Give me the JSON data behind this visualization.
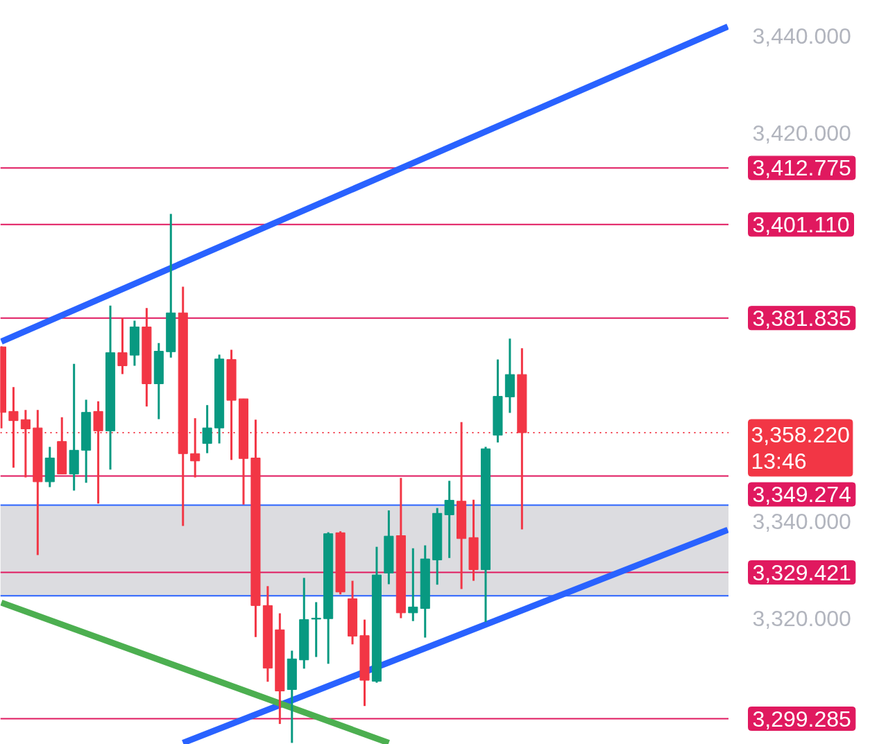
{
  "chart_data": {
    "type": "candlestick",
    "categories": [
      null,
      null,
      null,
      null,
      null,
      null,
      null,
      null,
      null,
      null,
      null,
      null,
      null,
      null,
      null,
      null,
      null,
      null,
      null,
      null,
      null,
      null,
      null,
      null,
      null,
      null,
      null,
      null,
      null,
      null,
      null,
      null,
      null,
      null,
      null,
      null,
      null,
      null,
      null,
      null,
      null,
      null,
      null,
      null,
      null,
      null,
      null,
      null,
      null,
      null,
      null,
      null,
      null,
      null,
      null,
      null,
      null,
      null,
      null,
      null,
      null
    ],
    "ohlc": [
      [
        3375.9,
        3376.0,
        3359.1,
        3362.4
      ],
      [
        3362.6,
        3367.6,
        3351.0,
        3360.7
      ],
      [
        3360.9,
        3362.9,
        3349.0,
        3359.0
      ],
      [
        3359.2,
        3362.9,
        3333.0,
        3348.1
      ],
      [
        3348.1,
        3355.3,
        3347.0,
        3353.0
      ],
      [
        3356.4,
        3361.4,
        3349.7,
        3349.7
      ],
      [
        3349.7,
        3372.4,
        3346.3,
        3354.6
      ],
      [
        3354.6,
        3365.0,
        3347.9,
        3362.4
      ],
      [
        3362.6,
        3364.7,
        3343.6,
        3358.6
      ],
      [
        3358.6,
        3384.4,
        3350.6,
        3374.7
      ],
      [
        3374.7,
        3381.9,
        3370.3,
        3372.0
      ],
      [
        3374.2,
        3381.3,
        3372.0,
        3380.0
      ],
      [
        3380.0,
        3383.9,
        3363.6,
        3368.3
      ],
      [
        3368.3,
        3376.7,
        3361.0,
        3375.0
      ],
      [
        3374.9,
        3403.3,
        3373.7,
        3382.9
      ],
      [
        3382.9,
        3388.3,
        3339.0,
        3353.9
      ],
      [
        3353.9,
        3361.2,
        3349.0,
        3352.4
      ],
      [
        3356.0,
        3363.9,
        3354.0,
        3359.2
      ],
      [
        3359.2,
        3374.3,
        3356.0,
        3373.4
      ],
      [
        3373.3,
        3375.3,
        3352.6,
        3364.9
      ],
      [
        3365.2,
        3365.2,
        3343.4,
        3352.9
      ],
      [
        3353.0,
        3360.9,
        3316.1,
        3322.6
      ],
      [
        3322.6,
        3326.6,
        3306.9,
        3309.7
      ],
      [
        3317.6,
        3321.0,
        3298.2,
        3305.0
      ],
      [
        3305.3,
        3313.3,
        3294.3,
        3311.6
      ],
      [
        3311.4,
        3328.3,
        3309.6,
        3319.7
      ],
      [
        3319.8,
        3323.3,
        3312.0,
        3320.0
      ],
      [
        3319.9,
        3337.7,
        3310.6,
        3337.4
      ],
      [
        3337.6,
        3337.9,
        3324.9,
        3325.4
      ],
      [
        3324.0,
        3327.7,
        3314.6,
        3316.3
      ],
      [
        3316.4,
        3319.7,
        3301.9,
        3307.2
      ],
      [
        3307.0,
        3334.7,
        3306.7,
        3328.9
      ],
      [
        3329.3,
        3342.2,
        3327.0,
        3336.9
      ],
      [
        3337.0,
        3348.9,
        3320.0,
        3321.1
      ],
      [
        3321.1,
        3334.4,
        3319.4,
        3322.3
      ],
      [
        3322.0,
        3335.0,
        3316.0,
        3332.2
      ],
      [
        3332.0,
        3342.7,
        3326.9,
        3341.6
      ],
      [
        3341.3,
        3348.3,
        3332.4,
        3344.3
      ],
      [
        3344.1,
        3360.4,
        3326.0,
        3336.4
      ],
      [
        3336.6,
        3344.4,
        3327.7,
        3330.0
      ],
      [
        3330.0,
        3355.3,
        3319.2,
        3354.9
      ],
      [
        3357.7,
        3373.3,
        3356.2,
        3365.7
      ],
      [
        3365.6,
        3377.6,
        3362.3,
        3370.2
      ],
      [
        3370.2,
        3375.6,
        3338.3,
        3358.22
      ],
      null,
      null,
      null,
      null,
      null,
      null,
      null,
      null,
      null,
      null,
      null,
      null,
      null,
      null,
      null,
      null,
      null
    ],
    "colors": [
      "#f23645",
      "#f23645",
      "#f23645",
      "#f23645",
      "#089981",
      "#f23645",
      "#089981",
      "#089981",
      "#f23645",
      "#089981",
      "#f23645",
      "#089981",
      "#f23645",
      "#089981",
      "#089981",
      "#f23645",
      "#f23645",
      "#089981",
      "#089981",
      "#f23645",
      "#f23645",
      "#f23645",
      "#f23645",
      "#f23645",
      "#089981",
      "#089981",
      "#089981",
      "#089981",
      "#f23645",
      "#f23645",
      "#f23645",
      "#089981",
      "#089981",
      "#f23645",
      "#089981",
      "#089981",
      "#089981",
      "#089981",
      "#f23645",
      "#f23645",
      "#089981",
      "#089981",
      "#089981",
      "#f23645",
      null,
      null,
      null,
      null,
      null,
      null,
      null,
      null,
      null,
      null,
      null,
      null,
      null,
      null,
      null,
      null,
      null
    ],
    "series": [
      {
        "type": "line",
        "color": "#2962ff",
        "values": [
          3377.0,
          null,
          null,
          null,
          null,
          null,
          null,
          null,
          null,
          null,
          null,
          null,
          null,
          null,
          null,
          null,
          null,
          null,
          null,
          null,
          null,
          null,
          null,
          null,
          null,
          null,
          null,
          null,
          null,
          null,
          null,
          null,
          null,
          null,
          null,
          null,
          null,
          null,
          null,
          null,
          null,
          null,
          null,
          null,
          null,
          null,
          null,
          null,
          null,
          null,
          null,
          null,
          null,
          null,
          null,
          null,
          null,
          null,
          null,
          null,
          3441.9
        ]
      },
      {
        "type": "line",
        "color": "#2962ff",
        "values": [
          null,
          null,
          null,
          null,
          null,
          null,
          null,
          null,
          null,
          null,
          null,
          null,
          null,
          null,
          null,
          3294.3,
          null,
          null,
          null,
          null,
          null,
          null,
          null,
          null,
          null,
          null,
          null,
          null,
          null,
          null,
          null,
          null,
          null,
          null,
          null,
          null,
          null,
          null,
          null,
          null,
          null,
          null,
          null,
          null,
          null,
          null,
          null,
          null,
          null,
          null,
          null,
          null,
          null,
          null,
          null,
          null,
          null,
          null,
          null,
          null,
          3338.2
        ]
      },
      {
        "type": "line",
        "color": "#4caf50",
        "values": [
          3323.2,
          null,
          null,
          null,
          null,
          null,
          null,
          null,
          null,
          null,
          null,
          null,
          null,
          null,
          null,
          null,
          null,
          null,
          null,
          null,
          null,
          null,
          null,
          null,
          null,
          null,
          null,
          null,
          null,
          null,
          null,
          null,
          3294.3,
          null,
          null,
          null,
          null,
          null,
          null,
          null,
          null,
          null,
          null,
          null,
          null,
          null,
          null,
          null,
          null,
          null,
          null,
          null,
          null,
          null,
          null,
          null,
          null,
          null,
          null,
          null,
          null
        ]
      }
    ],
    "ylim": [
      3294.0,
      3447.3
    ],
    "yticks": [
      {
        "value": 3320,
        "label": "3,320.000"
      },
      {
        "value": 3340,
        "label": "3,340.000"
      },
      {
        "value": 3420,
        "label": "3,420.000"
      },
      {
        "value": 3440,
        "label": "3,440.000"
      }
    ],
    "bands": [
      {
        "axis": "y",
        "from": 3324.6,
        "to": 3343.3,
        "color": "#dcdce0"
      }
    ],
    "ref_lines": [
      {
        "axis": "y",
        "value": 3324.6,
        "color": "#2962ff"
      },
      {
        "axis": "y",
        "value": 3343.3,
        "color": "#2962ff"
      },
      {
        "axis": "y",
        "value": 3412.775,
        "label": "3,412.775",
        "color": "#e0195f"
      },
      {
        "axis": "y",
        "value": 3401.11,
        "label": "3,401.110",
        "color": "#e0195f"
      },
      {
        "axis": "y",
        "value": 3381.835,
        "label": "3,381.835",
        "color": "#e0195f"
      },
      {
        "axis": "y",
        "value": 3349.274,
        "label": "3,349.274",
        "color": "#e0195f"
      },
      {
        "axis": "y",
        "value": 3329.421,
        "label": "3,329.421",
        "color": "#e0195f"
      },
      {
        "axis": "y",
        "value": 3299.285,
        "label": "3,299.285",
        "color": "#e0195f"
      },
      {
        "axis": "y",
        "value": 3358.22,
        "label": "3,358.220\n13:46",
        "color": "#f23645",
        "line_style": "dotted"
      }
    ],
    "grid": false,
    "tick_labels": "y"
  }
}
